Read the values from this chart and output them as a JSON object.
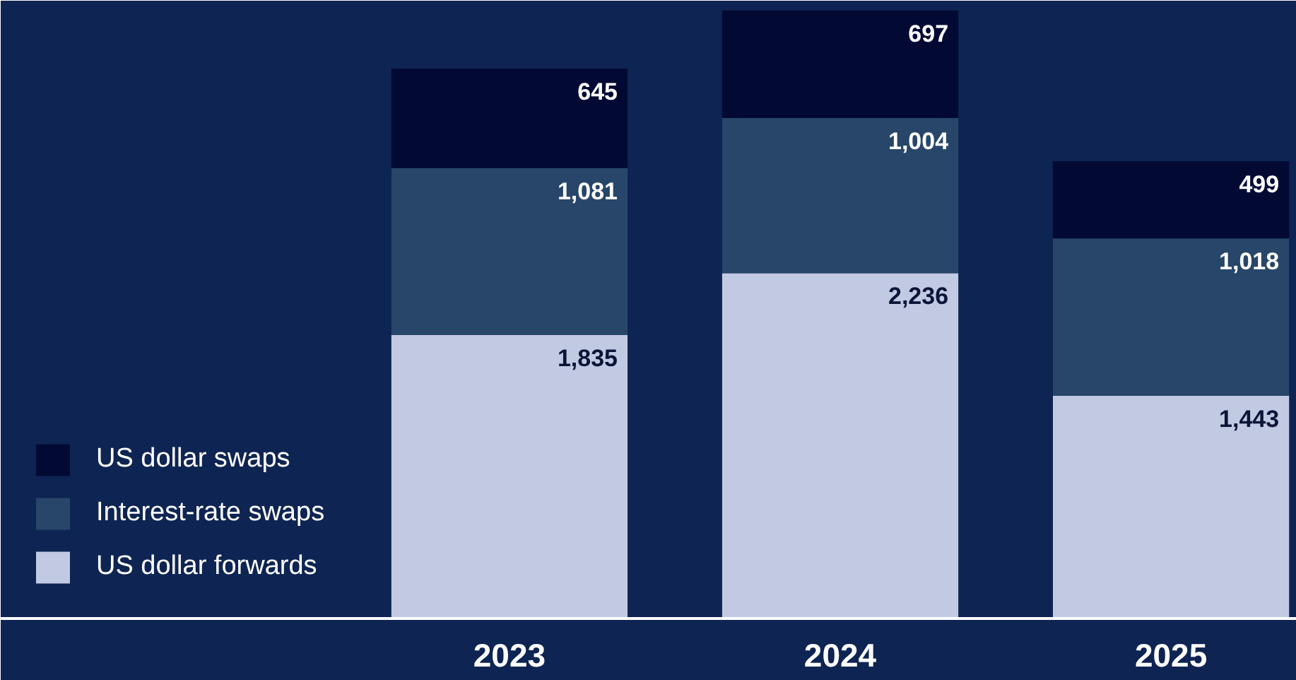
{
  "chart_data": {
    "type": "bar",
    "stacked": true,
    "categories": [
      "2023",
      "2024",
      "2025"
    ],
    "legend": "bottom left",
    "grid": false,
    "series": [
      {
        "name": "US dollar forwards",
        "color": "#c2c9e2",
        "values": [
          1835,
          2236,
          1443
        ],
        "value_labels": [
          "1,835",
          "2,236",
          "1,443"
        ]
      },
      {
        "name": "Interest-rate swaps",
        "color": "#274669",
        "values": [
          1081,
          1004,
          1018
        ],
        "value_labels": [
          "1,081",
          "1,004",
          "1,018"
        ]
      },
      {
        "name": "US dollar swaps",
        "color": "#020a33",
        "values": [
          645,
          697,
          499
        ],
        "value_labels": [
          "645",
          "697",
          "499"
        ]
      }
    ]
  }
}
